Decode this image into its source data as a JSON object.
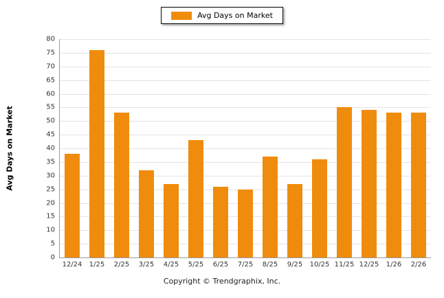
{
  "legend": {
    "label": "Avg Days on Market",
    "color": "#F08C0D"
  },
  "footer": "Copyright © Trendgraphix, Inc.",
  "chart_data": {
    "type": "bar",
    "title": "Avg Days on Market",
    "categories": [
      "12/24",
      "1/25",
      "2/25",
      "3/25",
      "4/25",
      "5/25",
      "6/25",
      "7/25",
      "8/25",
      "9/25",
      "10/25",
      "11/25",
      "12/25",
      "1/26",
      "2/26"
    ],
    "values": [
      38,
      76,
      53,
      32,
      27,
      43,
      26,
      25,
      37,
      27,
      36,
      55,
      54,
      53,
      53
    ],
    "xlabel": "",
    "ylabel": "Avg Days on Market",
    "ylim": [
      0,
      80
    ],
    "ytick_step": 5,
    "grid": true,
    "legend_position": "top",
    "bar_color": "#F08C0D"
  }
}
